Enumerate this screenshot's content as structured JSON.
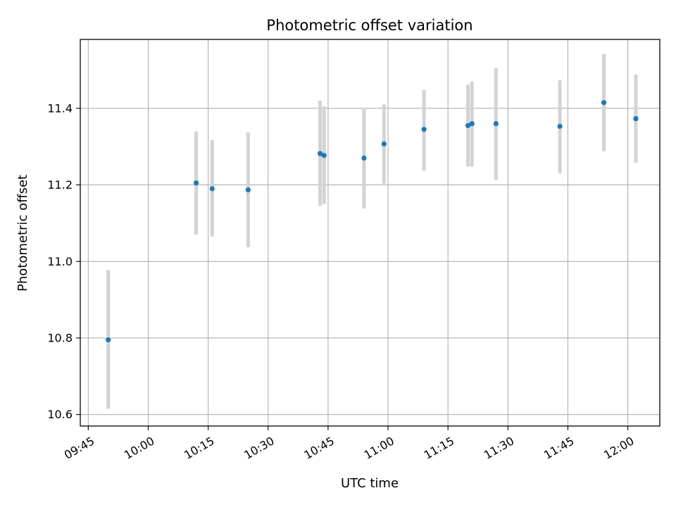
{
  "chart_data": {
    "type": "scatter",
    "title": "Photometric offset variation",
    "xlabel": "UTC time",
    "ylabel": "Photometric offset",
    "xlim": [
      "09:43",
      "12:08"
    ],
    "ylim": [
      10.57,
      11.58
    ],
    "x_ticks": [
      "09:45",
      "10:00",
      "10:15",
      "10:30",
      "10:45",
      "11:00",
      "11:15",
      "11:30",
      "11:45",
      "12:00"
    ],
    "y_ticks": [
      "10.6",
      "10.8",
      "11.0",
      "11.2",
      "11.4"
    ],
    "grid": true,
    "colors": {
      "point": "#1f77b4",
      "error_bar": "#d3d3d3",
      "grid": "#b0b0b0"
    },
    "points": [
      {
        "x": "09:50",
        "y": 10.795,
        "ylow": 10.615,
        "yhigh": 10.978
      },
      {
        "x": "10:12",
        "y": 11.205,
        "ylow": 11.07,
        "yhigh": 11.34
      },
      {
        "x": "10:16",
        "y": 11.19,
        "ylow": 11.065,
        "yhigh": 11.317
      },
      {
        "x": "10:25",
        "y": 11.187,
        "ylow": 11.037,
        "yhigh": 11.337
      },
      {
        "x": "10:43",
        "y": 11.282,
        "ylow": 11.145,
        "yhigh": 11.42
      },
      {
        "x": "10:44",
        "y": 11.277,
        "ylow": 11.15,
        "yhigh": 11.405
      },
      {
        "x": "10:54",
        "y": 11.27,
        "ylow": 11.138,
        "yhigh": 11.402
      },
      {
        "x": "10:59",
        "y": 11.307,
        "ylow": 11.203,
        "yhigh": 11.41
      },
      {
        "x": "11:09",
        "y": 11.345,
        "ylow": 11.237,
        "yhigh": 11.448
      },
      {
        "x": "11:20",
        "y": 11.355,
        "ylow": 11.248,
        "yhigh": 11.462
      },
      {
        "x": "11:21",
        "y": 11.36,
        "ylow": 11.248,
        "yhigh": 11.47
      },
      {
        "x": "11:27",
        "y": 11.36,
        "ylow": 11.213,
        "yhigh": 11.505
      },
      {
        "x": "11:43",
        "y": 11.353,
        "ylow": 11.23,
        "yhigh": 11.473
      },
      {
        "x": "11:54",
        "y": 11.415,
        "ylow": 11.288,
        "yhigh": 11.542
      },
      {
        "x": "12:02",
        "y": 11.373,
        "ylow": 11.258,
        "yhigh": 11.488
      }
    ]
  }
}
